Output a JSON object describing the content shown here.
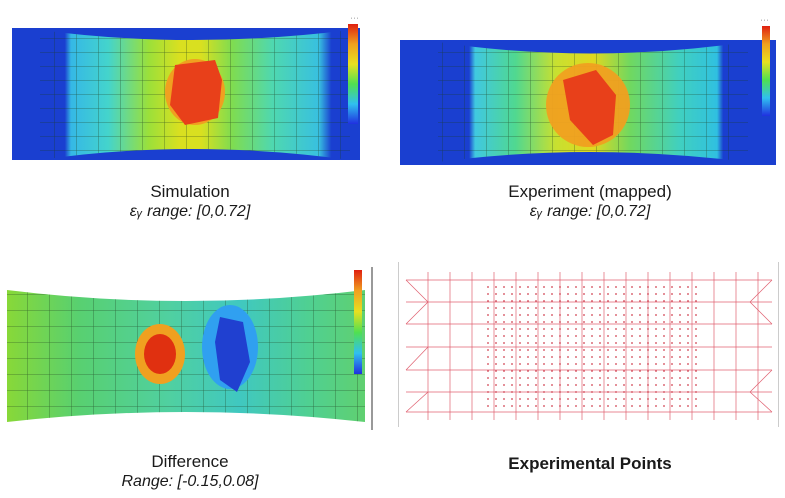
{
  "panels": [
    {
      "title": "Simulation",
      "subtitle": "εᵧ range: [0,0.72]"
    },
    {
      "title": "Experiment (mapped)",
      "subtitle": "εᵧ range: [0,0.72]"
    },
    {
      "title": "Difference",
      "subtitle": "Range: [-0.15,0.08]"
    },
    {
      "title": "Experimental Points"
    }
  ]
}
